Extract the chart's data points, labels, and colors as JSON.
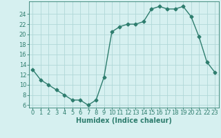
{
  "x": [
    0,
    1,
    2,
    3,
    4,
    5,
    6,
    7,
    8,
    9,
    10,
    11,
    12,
    13,
    14,
    15,
    16,
    17,
    18,
    19,
    20,
    21,
    22,
    23
  ],
  "y": [
    13,
    11,
    10,
    9,
    8,
    7,
    7,
    6,
    7,
    11.5,
    20.5,
    21.5,
    22,
    22,
    22.5,
    25,
    25.5,
    25,
    25,
    25.5,
    23.5,
    19.5,
    14.5,
    12.5
  ],
  "line_color": "#2e7d6e",
  "marker": "D",
  "markersize": 2.5,
  "linewidth": 1.0,
  "bg_color": "#d6f0f0",
  "grid_color": "#b0d8d8",
  "xlabel": "Humidex (Indice chaleur)",
  "xlim": [
    -0.5,
    23.5
  ],
  "ylim": [
    5.5,
    26.5
  ],
  "yticks": [
    6,
    8,
    10,
    12,
    14,
    16,
    18,
    20,
    22,
    24
  ],
  "xticks": [
    0,
    1,
    2,
    3,
    4,
    5,
    6,
    7,
    8,
    9,
    10,
    11,
    12,
    13,
    14,
    15,
    16,
    17,
    18,
    19,
    20,
    21,
    22,
    23
  ],
  "tick_color": "#2e7d6e",
  "label_color": "#2e7d6e",
  "xlabel_fontsize": 7,
  "tick_fontsize": 6
}
